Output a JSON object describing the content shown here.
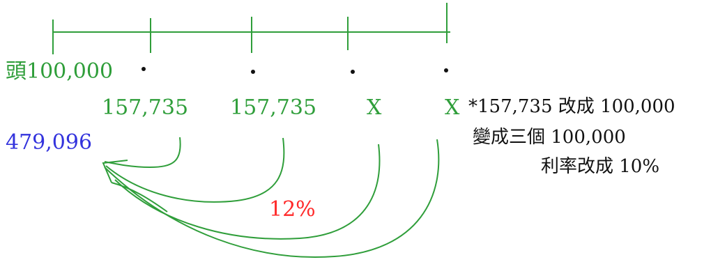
{
  "timeline": {
    "head_label": "頭100,000",
    "cash_flows": [
      "157,735",
      "157,735",
      "X",
      "X"
    ],
    "present_value": "479,096",
    "rate": "12%"
  },
  "note": {
    "line1": "*157,735 改成 100,000",
    "line2": "變成三個 100,000",
    "line3": "利率改成 10%"
  },
  "colors": {
    "green": "#2f9e3a",
    "blue": "#3333dd",
    "red": "#ff2a2a",
    "black": "#111111"
  }
}
